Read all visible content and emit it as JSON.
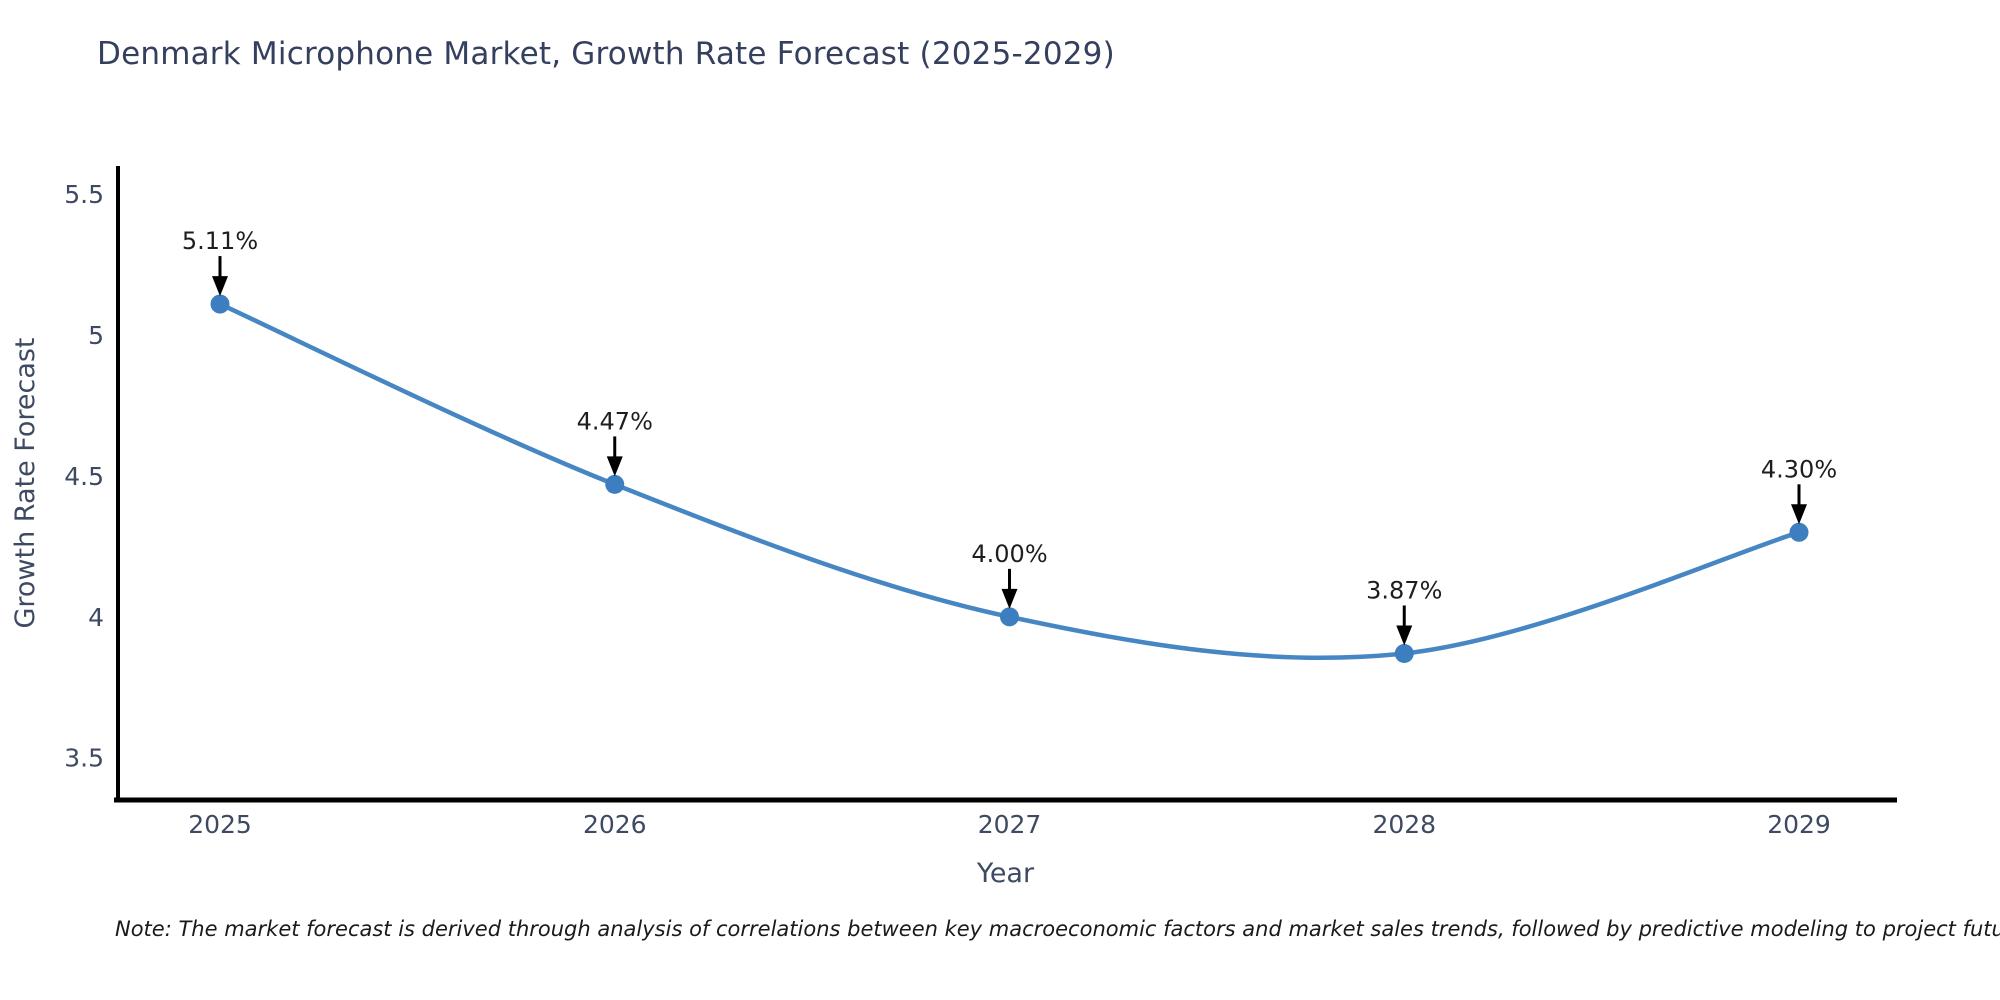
{
  "chart_data": {
    "type": "line",
    "title": "Denmark Microphone Market, Growth Rate Forecast (2025-2029)",
    "xlabel": "Year",
    "ylabel": "Growth Rate Forecast",
    "x": [
      2025,
      2026,
      2027,
      2028,
      2029
    ],
    "xtick_labels": [
      "2025",
      "2026",
      "2027",
      "2028",
      "2029"
    ],
    "series": [
      {
        "name": "Growth Rate Forecast",
        "values": [
          5.11,
          4.47,
          4.0,
          3.87,
          4.3
        ],
        "point_labels": [
          "5.11%",
          "4.47%",
          "4.00%",
          "3.87%",
          "4.30%"
        ]
      }
    ],
    "yticks": [
      3.5,
      4,
      4.5,
      5,
      5.5
    ],
    "ytick_labels": [
      "3.5",
      "4",
      "4.5",
      "5",
      "5.5"
    ],
    "ylim": [
      3.35,
      5.6
    ],
    "grid": false,
    "legend_position": "none",
    "colors": {
      "line": "#4687c3",
      "marker": "#3c7ebf",
      "axis": "#000000",
      "title": "#353f5e",
      "tick": "#3e4a61",
      "annotation": "#1e1e1e"
    }
  },
  "note": "Note: The market forecast is derived through analysis of correlations between key macroeconomic factors and market sales trends, followed by predictive modeling to project future sales"
}
